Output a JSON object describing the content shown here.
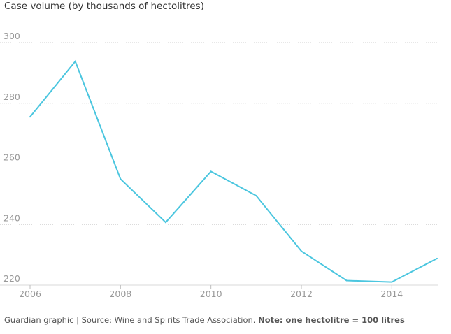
{
  "chart_data": {
    "type": "line",
    "title": "Case volume (by thousands of hectolitres)",
    "xlabel": "",
    "ylabel": "",
    "x": [
      2006,
      2007,
      2008,
      2009,
      2010,
      2011,
      2012,
      2013,
      2014,
      2015
    ],
    "series": [
      {
        "values": [
          275.5,
          293.8,
          255.0,
          240.7,
          257.5,
          249.5,
          231.2,
          221.5,
          221.0,
          228.8
        ]
      }
    ],
    "xlim": [
      2006,
      2015
    ],
    "ylim": [
      220,
      300
    ],
    "y_ticks": [
      300,
      280,
      260,
      240,
      220
    ],
    "x_ticks": [
      2006,
      2008,
      2010,
      2012,
      2014
    ],
    "grid": "horizontal dotted",
    "line_color": "#4bc6df"
  },
  "footer": {
    "source": "Guardian graphic | Source: Wine and Spirits Trade Association. ",
    "note": "Note: one hectolitre = 100 litres"
  }
}
